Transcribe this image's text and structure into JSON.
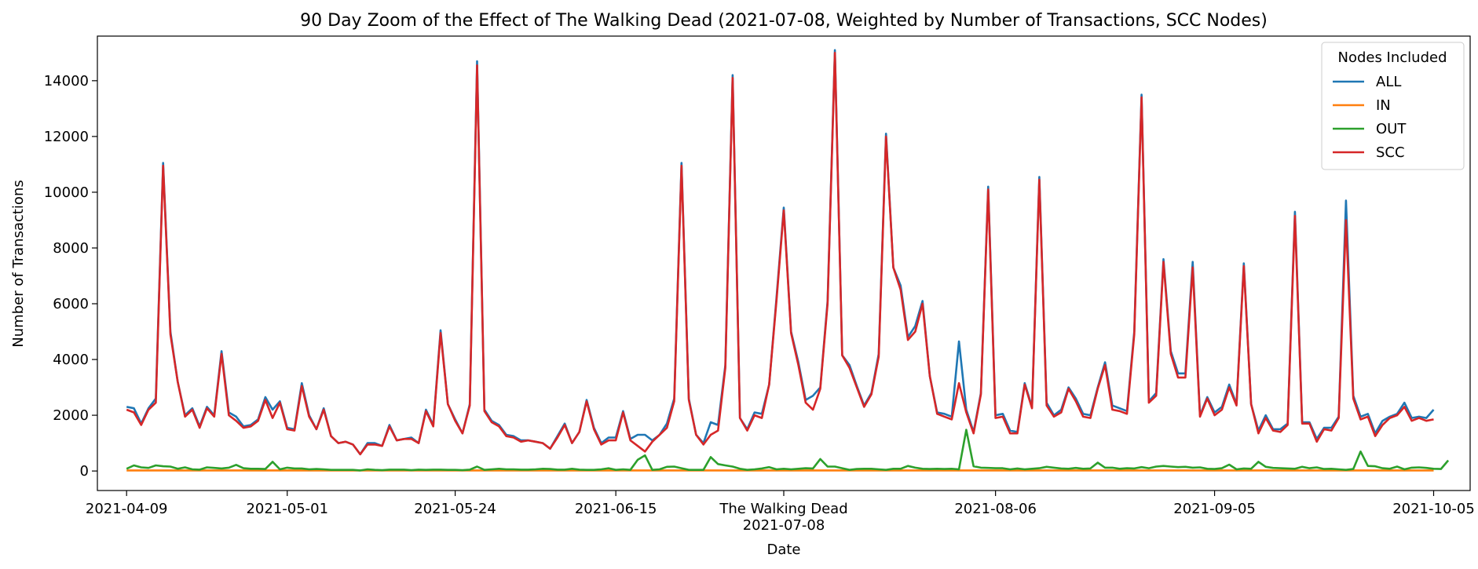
{
  "chart_data": {
    "type": "line",
    "title": "90 Day Zoom of the Effect of The Walking Dead (2021-07-08, Weighted by Number of Transactions, SCC Nodes)",
    "xlabel": "Date",
    "ylabel": "Number of Transactions",
    "ylim": [
      -700,
      15600
    ],
    "yticks": [
      0,
      2000,
      4000,
      6000,
      8000,
      10000,
      12000,
      14000
    ],
    "xlim": [
      "2021-04-05",
      "2021-10-10"
    ],
    "xticks": [
      {
        "date": "2021-04-09",
        "label": "2021-04-09"
      },
      {
        "date": "2021-05-01",
        "label": "2021-05-01"
      },
      {
        "date": "2021-05-24",
        "label": "2021-05-24"
      },
      {
        "date": "2021-06-15",
        "label": "2021-06-15"
      },
      {
        "date": "2021-07-08",
        "label": "The Walking Dead",
        "label2": "2021-07-08"
      },
      {
        "date": "2021-08-06",
        "label": "2021-08-06"
      },
      {
        "date": "2021-09-05",
        "label": "2021-09-05"
      },
      {
        "date": "2021-10-05",
        "label": "2021-10-05"
      }
    ],
    "grid": false,
    "legend": {
      "title": "Nodes Included",
      "placement": "top-right"
    },
    "x_start": "2021-04-09",
    "x_step_days": 1,
    "series": [
      {
        "name": "ALL",
        "color": "#1f77b4",
        "values": [
          2300,
          2250,
          1700,
          2250,
          2600,
          11050,
          5000,
          3200,
          2000,
          2250,
          1600,
          2300,
          2000,
          4300,
          2100,
          1950,
          1600,
          1650,
          1850,
          2650,
          2200,
          2500,
          1550,
          1500,
          3150,
          2000,
          1500,
          2250,
          1250,
          1000,
          1050,
          950,
          600,
          1000,
          1000,
          900,
          1650,
          1100,
          1150,
          1200,
          1000,
          2200,
          1650,
          5050,
          2400,
          1850,
          1350,
          2400,
          14700,
          2200,
          1800,
          1650,
          1300,
          1250,
          1100,
          1100,
          1050,
          1000,
          800,
          1250,
          1700,
          1000,
          1400,
          2550,
          1550,
          1000,
          1200,
          1200,
          2150,
          1150,
          1300,
          1300,
          1100,
          1300,
          1700,
          2600,
          11050,
          2600,
          1300,
          1000,
          1750,
          1650,
          3800,
          14200,
          1900,
          1500,
          2100,
          2050,
          3100,
          6200,
          9450,
          5000,
          3900,
          2550,
          2700,
          3000,
          6100,
          15100,
          4150,
          3800,
          3050,
          2350,
          2800,
          4200,
          12100,
          7300,
          6650,
          4800,
          5200,
          6100,
          3400,
          2100,
          2050,
          1950,
          4650,
          2200,
          1400,
          2800,
          10200,
          2000,
          2050,
          1450,
          1400,
          3150,
          2300,
          10550,
          2450,
          2000,
          2200,
          3000,
          2600,
          2050,
          2000,
          3000,
          3900,
          2350,
          2250,
          2150,
          5000,
          13500,
          2500,
          2800,
          7600,
          4300,
          3500,
          3500,
          7500,
          2000,
          2650,
          2100,
          2300,
          3100,
          2400,
          7450,
          2400,
          1450,
          2000,
          1500,
          1500,
          1700,
          9300,
          1750,
          1750,
          1150,
          1550,
          1550,
          1950,
          9700,
          2700,
          1950,
          2050,
          1350,
          1800,
          1950,
          2050,
          2450,
          1900,
          1950,
          1900,
          2200
        ]
      },
      {
        "name": "IN",
        "color": "#ff7f0e",
        "values": [
          20,
          20,
          20,
          20,
          20,
          20,
          20,
          20,
          20,
          20,
          20,
          20,
          20,
          20,
          20,
          20,
          20,
          20,
          20,
          20,
          20,
          20,
          20,
          20,
          20,
          20,
          20,
          20,
          20,
          20,
          20,
          20,
          20,
          20,
          20,
          20,
          20,
          20,
          20,
          20,
          20,
          20,
          20,
          20,
          20,
          20,
          20,
          20,
          20,
          20,
          20,
          20,
          20,
          20,
          20,
          20,
          20,
          20,
          20,
          20,
          20,
          20,
          20,
          20,
          20,
          20,
          20,
          20,
          20,
          20,
          20,
          20,
          20,
          20,
          20,
          20,
          20,
          20,
          20,
          20,
          20,
          20,
          20,
          20,
          20,
          20,
          20,
          20,
          20,
          20,
          20,
          20,
          20,
          20,
          20,
          20,
          20,
          20,
          20,
          20,
          20,
          20,
          20,
          20,
          20,
          20,
          20,
          20,
          20,
          20,
          20,
          20,
          20,
          20,
          20,
          20,
          20,
          20,
          20,
          20,
          20,
          20,
          20,
          20,
          20,
          20,
          20,
          20,
          20,
          20,
          20,
          20,
          20,
          20,
          20,
          20,
          20,
          20,
          20,
          20,
          20,
          20,
          20,
          20,
          20,
          20,
          20,
          20,
          20,
          20,
          20,
          20,
          20,
          20,
          20,
          20,
          20,
          20,
          20,
          20,
          20,
          20,
          20,
          20,
          20,
          20,
          20,
          20,
          20,
          20,
          20,
          20,
          20,
          20,
          20,
          20,
          20,
          20,
          20,
          20
        ]
      },
      {
        "name": "OUT",
        "color": "#2ca02c",
        "values": [
          80,
          200,
          130,
          110,
          200,
          170,
          160,
          80,
          130,
          60,
          50,
          130,
          110,
          90,
          120,
          220,
          100,
          80,
          80,
          70,
          330,
          60,
          120,
          90,
          90,
          60,
          70,
          60,
          40,
          40,
          40,
          40,
          20,
          60,
          40,
          30,
          50,
          50,
          50,
          30,
          50,
          40,
          50,
          50,
          40,
          40,
          30,
          50,
          160,
          40,
          60,
          80,
          60,
          60,
          50,
          50,
          60,
          80,
          70,
          50,
          50,
          80,
          50,
          40,
          40,
          60,
          100,
          40,
          60,
          40,
          400,
          560,
          40,
          60,
          150,
          160,
          100,
          40,
          40,
          40,
          500,
          250,
          200,
          160,
          80,
          40,
          60,
          90,
          140,
          60,
          80,
          60,
          80,
          100,
          90,
          430,
          160,
          160,
          100,
          40,
          70,
          80,
          80,
          60,
          40,
          80,
          80,
          180,
          120,
          80,
          70,
          80,
          70,
          80,
          60,
          1480,
          170,
          120,
          110,
          100,
          100,
          60,
          90,
          60,
          80,
          100,
          150,
          120,
          90,
          80,
          110,
          80,
          90,
          300,
          120,
          120,
          80,
          100,
          90,
          140,
          100,
          160,
          180,
          160,
          140,
          150,
          120,
          130,
          80,
          70,
          100,
          230,
          60,
          90,
          80,
          330,
          150,
          110,
          100,
          90,
          80,
          150,
          100,
          130,
          70,
          80,
          60,
          40,
          70,
          700,
          180,
          170,
          100,
          80,
          160,
          60,
          120,
          130,
          110,
          80,
          70,
          380
        ]
      },
      {
        "name": "SCC",
        "color": "#d62728",
        "values": [
          2200,
          2100,
          1650,
          2200,
          2450,
          10950,
          4900,
          3200,
          1950,
          2200,
          1550,
          2250,
          1950,
          4200,
          2000,
          1800,
          1550,
          1600,
          1800,
          2550,
          1900,
          2450,
          1500,
          1450,
          3050,
          1950,
          1500,
          2200,
          1250,
          1000,
          1050,
          950,
          600,
          950,
          950,
          900,
          1600,
          1100,
          1150,
          1150,
          1000,
          2150,
          1600,
          4950,
          2400,
          1800,
          1350,
          2350,
          14550,
          2150,
          1750,
          1600,
          1250,
          1200,
          1050,
          1100,
          1050,
          1000,
          800,
          1200,
          1650,
          1000,
          1400,
          2500,
          1500,
          950,
          1100,
          1100,
          2100,
          1100,
          900,
          700,
          1050,
          1300,
          1550,
          2500,
          10950,
          2550,
          1300,
          950,
          1300,
          1450,
          3700,
          14100,
          1900,
          1450,
          2000,
          1900,
          3100,
          6100,
          9350,
          4950,
          3800,
          2450,
          2200,
          2950,
          6000,
          15000,
          4150,
          3700,
          3000,
          2300,
          2750,
          4100,
          12000,
          7300,
          6500,
          4700,
          5000,
          6000,
          3400,
          2050,
          1950,
          1850,
          3150,
          2100,
          1350,
          2750,
          10100,
          1900,
          1950,
          1350,
          1350,
          3100,
          2250,
          10450,
          2350,
          1950,
          2100,
          2950,
          2500,
          1950,
          1900,
          2950,
          3800,
          2200,
          2150,
          2050,
          4900,
          13400,
          2450,
          2700,
          7500,
          4200,
          3350,
          3350,
          7300,
          1950,
          2600,
          2000,
          2200,
          3000,
          2350,
          7350,
          2400,
          1350,
          1900,
          1450,
          1400,
          1650,
          9150,
          1700,
          1700,
          1050,
          1500,
          1450,
          1900,
          9000,
          2600,
          1850,
          1950,
          1250,
          1650,
          1900,
          2000,
          2300,
          1800,
          1900,
          1800,
          1850
        ]
      }
    ]
  }
}
